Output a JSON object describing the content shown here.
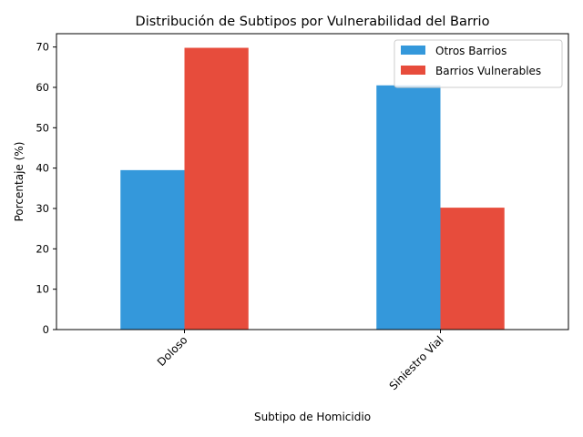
{
  "chart_data": {
    "type": "bar",
    "title": "Distribución de Subtipos por Vulnerabilidad del Barrio",
    "xlabel": "Subtipo de Homicidio",
    "ylabel": "Porcentaje (%)",
    "categories": [
      "Doloso",
      "Siniestro Vial"
    ],
    "series": [
      {
        "name": "Otros Barrios",
        "color": "#3498db",
        "values": [
          39.5,
          60.5
        ]
      },
      {
        "name": "Barrios Vulnerables",
        "color": "#e74c3c",
        "values": [
          69.8,
          30.2
        ]
      }
    ],
    "ylim": [
      0,
      73.3
    ],
    "yticks": [
      0,
      10,
      20,
      30,
      40,
      50,
      60,
      70
    ],
    "grid": false,
    "legend_position": "top-right"
  }
}
